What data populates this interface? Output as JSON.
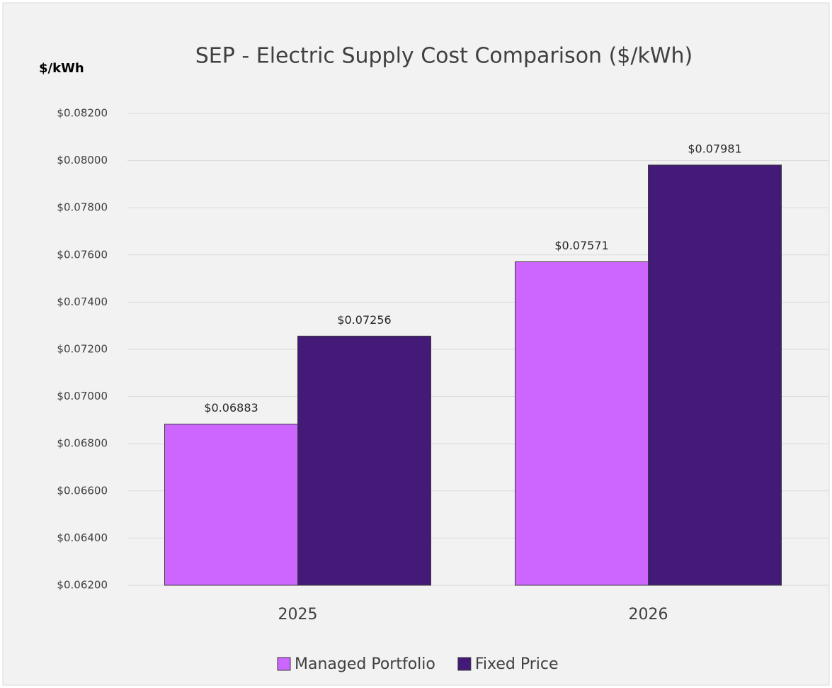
{
  "chart_data": {
    "type": "bar",
    "title": "SEP - Electric Supply Cost Comparison ($/kWh)",
    "y_axis_label": "$/kWh",
    "categories": [
      "2025",
      "2026"
    ],
    "series": [
      {
        "name": "Managed Portfolio",
        "color": "#cc66ff",
        "values": [
          0.06883,
          0.07571
        ],
        "value_labels": [
          "$0.06883",
          "$0.07571"
        ]
      },
      {
        "name": "Fixed Price",
        "color": "#441a78",
        "values": [
          0.07256,
          0.07981
        ],
        "value_labels": [
          "$0.07256",
          "$0.07981"
        ]
      }
    ],
    "ylim": [
      0.062,
      0.082
    ],
    "yticks": [
      {
        "value": 0.062,
        "label": "$0.06200"
      },
      {
        "value": 0.064,
        "label": "$0.06400"
      },
      {
        "value": 0.066,
        "label": "$0.06600"
      },
      {
        "value": 0.068,
        "label": "$0.06800"
      },
      {
        "value": 0.07,
        "label": "$0.07000"
      },
      {
        "value": 0.072,
        "label": "$0.07200"
      },
      {
        "value": 0.074,
        "label": "$0.07400"
      },
      {
        "value": 0.076,
        "label": "$0.07600"
      },
      {
        "value": 0.078,
        "label": "$0.07800"
      },
      {
        "value": 0.08,
        "label": "$0.08000"
      },
      {
        "value": 0.082,
        "label": "$0.08200"
      }
    ],
    "grid": true,
    "legend": "bottom"
  }
}
